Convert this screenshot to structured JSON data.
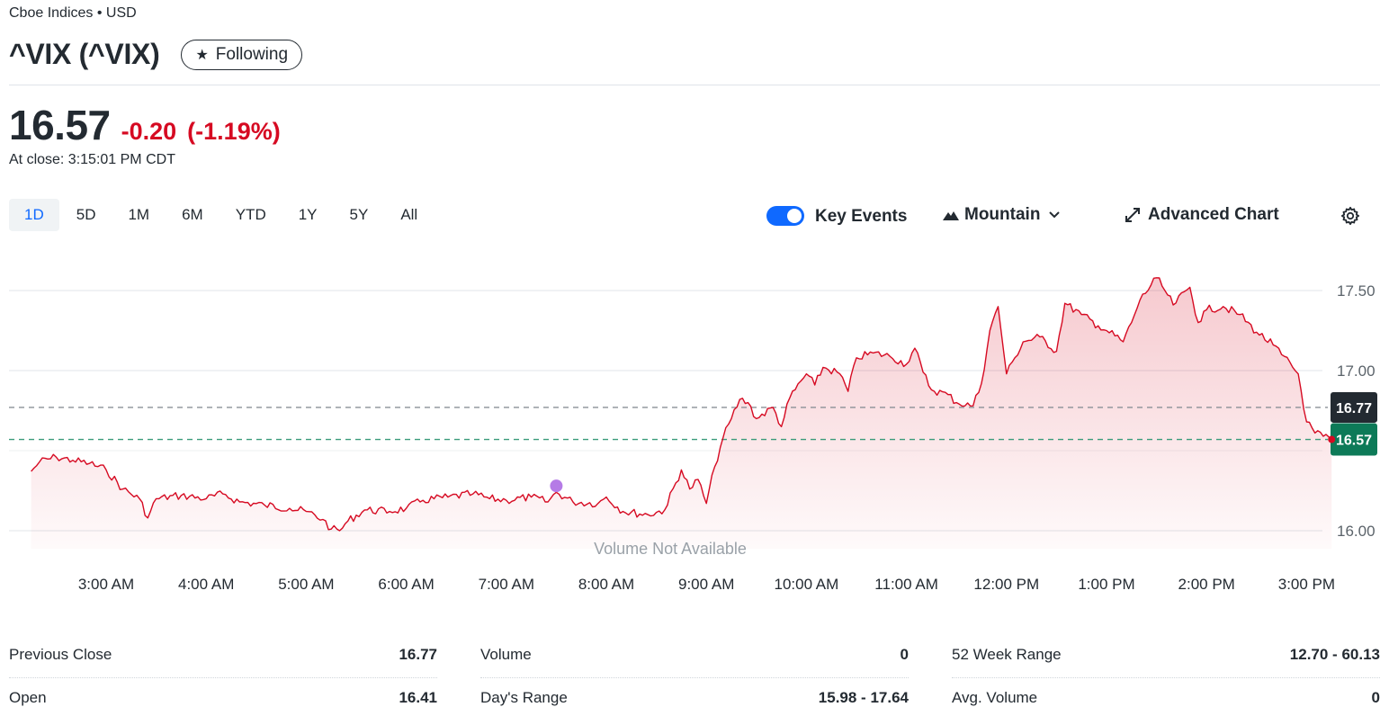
{
  "header": {
    "exchange": "Cboe Indices • USD",
    "title": "^VIX (^VIX)",
    "follow_label": "Following",
    "follow_icon": "star-icon"
  },
  "quote": {
    "price": "16.57",
    "change": "-0.20",
    "change_pct": "(-1.19%)",
    "close_time": "At close: 3:15:01 PM CDT",
    "change_color": "#d60a22"
  },
  "ranges": [
    "1D",
    "5D",
    "1M",
    "6M",
    "YTD",
    "1Y",
    "5Y",
    "All"
  ],
  "active_range": "1D",
  "toolbar": {
    "key_events_label": "Key Events",
    "key_events_on": true,
    "chart_type_label": "Mountain",
    "advanced_label": "Advanced Chart",
    "settings_icon": "gear-icon"
  },
  "chart_data": {
    "type": "area",
    "ylim": [
      15.98,
      17.64
    ],
    "y_ticks": [
      16.0,
      17.0,
      17.5
    ],
    "y_tick_labels": [
      "16.00",
      "17.00",
      "17.50"
    ],
    "x_tick_labels": [
      "3:00 AM",
      "4:00 AM",
      "5:00 AM",
      "6:00 AM",
      "7:00 AM",
      "8:00 AM",
      "9:00 AM",
      "10:00 AM",
      "11:00 AM",
      "12:00 PM",
      "1:00 PM",
      "2:00 PM",
      "3:00 PM"
    ],
    "previous_close": 16.77,
    "previous_close_label": "16.77",
    "last": 16.57,
    "last_label": "16.57",
    "volume_note": "Volume Not Available",
    "line_color": "#d60a22",
    "prev_badge_color": "#232a31",
    "last_badge_color": "#0d7a58",
    "key_event_color": "#b57be6",
    "key_event": {
      "x": "7:30 AM",
      "y": 16.28
    },
    "series": [
      {
        "values": [
          [
            "2:15 AM",
            16.37
          ],
          [
            "2:20 AM",
            16.43
          ],
          [
            "2:30 AM",
            16.46
          ],
          [
            "2:40 AM",
            16.44
          ],
          [
            "2:50 AM",
            16.42
          ],
          [
            "3:00 AM",
            16.38
          ],
          [
            "3:10 AM",
            16.26
          ],
          [
            "3:20 AM",
            16.2
          ],
          [
            "3:25 AM",
            16.08
          ],
          [
            "3:30 AM",
            16.2
          ],
          [
            "3:45 AM",
            16.22
          ],
          [
            "4:00 AM",
            16.2
          ],
          [
            "4:10 AM",
            16.23
          ],
          [
            "4:20 AM",
            16.18
          ],
          [
            "4:35 AM",
            16.16
          ],
          [
            "4:50 AM",
            16.14
          ],
          [
            "5:00 AM",
            16.12
          ],
          [
            "5:10 AM",
            16.07
          ],
          [
            "5:15 AM",
            16.01
          ],
          [
            "5:20 AM",
            16.0
          ],
          [
            "5:25 AM",
            16.06
          ],
          [
            "5:35 AM",
            16.13
          ],
          [
            "5:50 AM",
            16.12
          ],
          [
            "6:00 AM",
            16.14
          ],
          [
            "6:10 AM",
            16.19
          ],
          [
            "6:25 AM",
            16.21
          ],
          [
            "6:40 AM",
            16.23
          ],
          [
            "6:50 AM",
            16.2
          ],
          [
            "7:00 AM",
            16.19
          ],
          [
            "7:15 AM",
            16.21
          ],
          [
            "7:25 AM",
            16.18
          ],
          [
            "7:30 AM",
            16.24
          ],
          [
            "7:40 AM",
            16.18
          ],
          [
            "7:55 AM",
            16.17
          ],
          [
            "8:00 AM",
            16.21
          ],
          [
            "8:10 AM",
            16.12
          ],
          [
            "8:25 AM",
            16.1
          ],
          [
            "8:35 AM",
            16.13
          ],
          [
            "8:45 AM",
            16.38
          ],
          [
            "8:50 AM",
            16.26
          ],
          [
            "8:55 AM",
            16.32
          ],
          [
            "9:00 AM",
            16.17
          ],
          [
            "9:05 AM",
            16.4
          ],
          [
            "9:10 AM",
            16.58
          ],
          [
            "9:15 AM",
            16.7
          ],
          [
            "9:20 AM",
            16.82
          ],
          [
            "9:25 AM",
            16.8
          ],
          [
            "9:30 AM",
            16.7
          ],
          [
            "9:40 AM",
            16.77
          ],
          [
            "9:45 AM",
            16.65
          ],
          [
            "9:50 AM",
            16.83
          ],
          [
            "10:00 AM",
            16.98
          ],
          [
            "10:05 AM",
            16.91
          ],
          [
            "10:10 AM",
            17.02
          ],
          [
            "10:20 AM",
            16.98
          ],
          [
            "10:25 AM",
            16.87
          ],
          [
            "10:30 AM",
            17.08
          ],
          [
            "10:40 AM",
            17.11
          ],
          [
            "10:50 AM",
            17.09
          ],
          [
            "11:00 AM",
            17.04
          ],
          [
            "11:05 AM",
            17.14
          ],
          [
            "11:10 AM",
            16.99
          ],
          [
            "11:15 AM",
            16.88
          ],
          [
            "11:25 AM",
            16.85
          ],
          [
            "11:30 AM",
            16.8
          ],
          [
            "11:40 AM",
            16.78
          ],
          [
            "11:45 AM",
            16.92
          ],
          [
            "11:50 AM",
            17.25
          ],
          [
            "11:55 AM",
            17.4
          ],
          [
            "12:00 PM",
            16.98
          ],
          [
            "12:05 PM",
            17.08
          ],
          [
            "12:10 PM",
            17.18
          ],
          [
            "12:20 PM",
            17.21
          ],
          [
            "12:30 PM",
            17.12
          ],
          [
            "12:35 PM",
            17.42
          ],
          [
            "12:45 PM",
            17.35
          ],
          [
            "12:55 PM",
            17.28
          ],
          [
            "1:00 PM",
            17.25
          ],
          [
            "1:10 PM",
            17.18
          ],
          [
            "1:15 PM",
            17.3
          ],
          [
            "1:20 PM",
            17.44
          ],
          [
            "1:30 PM",
            17.58
          ],
          [
            "1:35 PM",
            17.5
          ],
          [
            "1:40 PM",
            17.41
          ],
          [
            "1:50 PM",
            17.52
          ],
          [
            "1:55 PM",
            17.3
          ],
          [
            "2:00 PM",
            17.38
          ],
          [
            "2:10 PM",
            17.4
          ],
          [
            "2:20 PM",
            17.35
          ],
          [
            "2:30 PM",
            17.24
          ],
          [
            "2:40 PM",
            17.16
          ],
          [
            "2:45 PM",
            17.1
          ],
          [
            "2:55 PM",
            16.98
          ],
          [
            "3:00 PM",
            16.68
          ],
          [
            "3:05 PM",
            16.61
          ],
          [
            "3:10 PM",
            16.59
          ],
          [
            "3:15 PM",
            16.57
          ]
        ]
      }
    ]
  },
  "stats": [
    [
      {
        "label": "Previous Close",
        "value": "16.77"
      },
      {
        "label": "Open",
        "value": "16.41"
      }
    ],
    [
      {
        "label": "Volume",
        "value": "0"
      },
      {
        "label": "Day's Range",
        "value": "15.98 - 17.64"
      }
    ],
    [
      {
        "label": "52 Week Range",
        "value": "12.70 - 60.13"
      },
      {
        "label": "Avg. Volume",
        "value": "0"
      }
    ]
  ]
}
